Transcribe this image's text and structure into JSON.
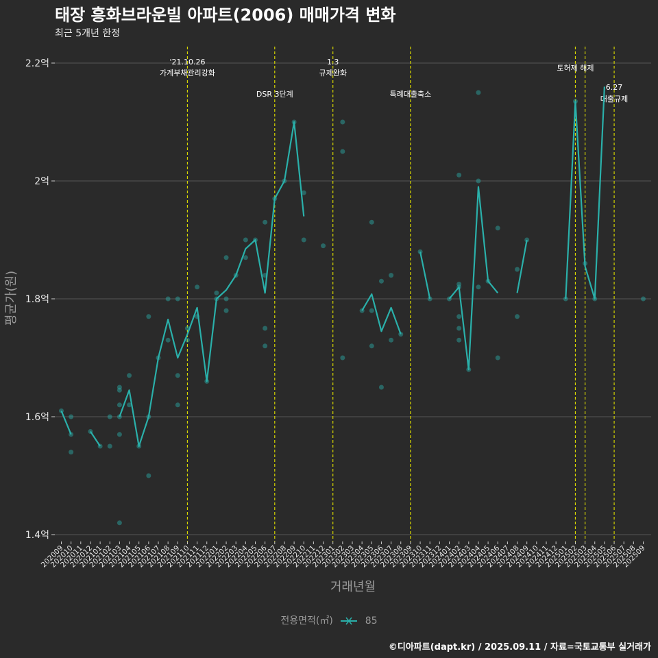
{
  "header": {
    "title": "태장 흥화브라운빌 아파트(2006) 매매가격 변화",
    "subtitle": "최근 5개년 한정"
  },
  "legend": {
    "title": "전용면적(㎡)",
    "item": "85"
  },
  "footer": {
    "credit": "©디아파트(dapt.kr) / 2025.09.11 / 자료=국토교통부 실거래가"
  },
  "colors": {
    "background": "#2a2a2a",
    "series": "#2ab0aa",
    "event_line": "#d8d800",
    "grid": "#555555"
  },
  "chart_data": {
    "type": "line",
    "title": "태장 흥화브라운빌 아파트(2006) 매매가격 변화",
    "xlabel": "거래년월",
    "ylabel": "평균가(원)",
    "ylim": [
      1.38,
      2.22
    ],
    "y_ticks": [
      {
        "value": 1.4,
        "label": "1.4억"
      },
      {
        "value": 1.6,
        "label": "1.6억"
      },
      {
        "value": 1.8,
        "label": "1.8억"
      },
      {
        "value": 2.0,
        "label": "2억"
      },
      {
        "value": 2.2,
        "label": "2.2억"
      }
    ],
    "categories": [
      "202009",
      "202010",
      "202011",
      "202012",
      "202101",
      "202102",
      "202103",
      "202104",
      "202105",
      "202106",
      "202107",
      "202108",
      "202109",
      "202110",
      "202111",
      "202112",
      "202201",
      "202202",
      "202203",
      "202204",
      "202205",
      "202206",
      "202207",
      "202208",
      "202209",
      "202210",
      "202211",
      "202212",
      "202301",
      "202302",
      "202303",
      "202304",
      "202305",
      "202306",
      "202307",
      "202308",
      "202309",
      "202310",
      "202311",
      "202312",
      "202401",
      "202402",
      "202403",
      "202404",
      "202405",
      "202406",
      "202407",
      "202408",
      "202409",
      "202410",
      "202411",
      "202412",
      "202501",
      "202502",
      "202503",
      "202504",
      "202505",
      "202506",
      "202507",
      "202508",
      "202509"
    ],
    "series": [
      {
        "name": "85",
        "values": [
          1.61,
          1.57,
          null,
          1.575,
          1.55,
          null,
          1.6,
          1.645,
          1.55,
          1.6,
          1.7,
          1.765,
          1.7,
          1.74,
          1.785,
          1.66,
          1.8,
          1.815,
          1.84,
          1.885,
          1.9,
          1.81,
          1.97,
          2.0,
          2.1,
          1.94,
          null,
          null,
          null,
          null,
          null,
          1.78,
          1.808,
          1.745,
          1.785,
          1.74,
          null,
          1.88,
          1.8,
          null,
          1.8,
          1.82,
          1.68,
          1.99,
          1.83,
          1.81,
          null,
          1.81,
          1.9,
          null,
          null,
          null,
          1.8,
          2.135,
          1.855,
          1.8,
          2.16,
          null,
          null,
          null,
          null
        ]
      }
    ],
    "scatter_points": [
      {
        "x": "202009",
        "y": 1.61
      },
      {
        "x": "202010",
        "y": 1.6
      },
      {
        "x": "202010",
        "y": 1.57
      },
      {
        "x": "202010",
        "y": 1.54
      },
      {
        "x": "202012",
        "y": 1.575
      },
      {
        "x": "202101",
        "y": 1.55
      },
      {
        "x": "202102",
        "y": 1.6
      },
      {
        "x": "202102",
        "y": 1.55
      },
      {
        "x": "202103",
        "y": 1.65
      },
      {
        "x": "202103",
        "y": 1.645
      },
      {
        "x": "202103",
        "y": 1.62
      },
      {
        "x": "202103",
        "y": 1.6
      },
      {
        "x": "202103",
        "y": 1.57
      },
      {
        "x": "202103",
        "y": 1.42
      },
      {
        "x": "202104",
        "y": 1.67
      },
      {
        "x": "202104",
        "y": 1.62
      },
      {
        "x": "202105",
        "y": 1.55
      },
      {
        "x": "202106",
        "y": 1.77
      },
      {
        "x": "202106",
        "y": 1.6
      },
      {
        "x": "202106",
        "y": 1.5
      },
      {
        "x": "202107",
        "y": 1.7
      },
      {
        "x": "202108",
        "y": 1.8
      },
      {
        "x": "202108",
        "y": 1.73
      },
      {
        "x": "202109",
        "y": 1.8
      },
      {
        "x": "202109",
        "y": 1.67
      },
      {
        "x": "202109",
        "y": 1.62
      },
      {
        "x": "202110",
        "y": 1.75
      },
      {
        "x": "202110",
        "y": 1.73
      },
      {
        "x": "202111",
        "y": 1.82
      },
      {
        "x": "202111",
        "y": 1.77
      },
      {
        "x": "202112",
        "y": 1.66
      },
      {
        "x": "202201",
        "y": 1.81
      },
      {
        "x": "202201",
        "y": 1.8
      },
      {
        "x": "202202",
        "y": 1.87
      },
      {
        "x": "202202",
        "y": 1.8
      },
      {
        "x": "202202",
        "y": 1.78
      },
      {
        "x": "202203",
        "y": 1.84
      },
      {
        "x": "202204",
        "y": 1.9
      },
      {
        "x": "202204",
        "y": 1.87
      },
      {
        "x": "202205",
        "y": 1.9
      },
      {
        "x": "202206",
        "y": 1.93
      },
      {
        "x": "202206",
        "y": 1.84
      },
      {
        "x": "202206",
        "y": 1.75
      },
      {
        "x": "202206",
        "y": 1.72
      },
      {
        "x": "202207",
        "y": 1.97
      },
      {
        "x": "202208",
        "y": 2.0
      },
      {
        "x": "202209",
        "y": 2.1
      },
      {
        "x": "202210",
        "y": 1.98
      },
      {
        "x": "202210",
        "y": 1.9
      },
      {
        "x": "202212",
        "y": 1.89
      },
      {
        "x": "202302",
        "y": 2.1
      },
      {
        "x": "202302",
        "y": 2.05
      },
      {
        "x": "202302",
        "y": 1.7
      },
      {
        "x": "202304",
        "y": 1.78
      },
      {
        "x": "202305",
        "y": 1.93
      },
      {
        "x": "202305",
        "y": 1.78
      },
      {
        "x": "202305",
        "y": 1.72
      },
      {
        "x": "202306",
        "y": 1.83
      },
      {
        "x": "202306",
        "y": 1.65
      },
      {
        "x": "202307",
        "y": 1.84
      },
      {
        "x": "202307",
        "y": 1.73
      },
      {
        "x": "202308",
        "y": 1.74
      },
      {
        "x": "202310",
        "y": 1.88
      },
      {
        "x": "202311",
        "y": 1.8
      },
      {
        "x": "202401",
        "y": 1.8
      },
      {
        "x": "202402",
        "y": 2.01
      },
      {
        "x": "202402",
        "y": 1.825
      },
      {
        "x": "202402",
        "y": 1.82
      },
      {
        "x": "202402",
        "y": 1.77
      },
      {
        "x": "202402",
        "y": 1.75
      },
      {
        "x": "202402",
        "y": 1.73
      },
      {
        "x": "202403",
        "y": 1.68
      },
      {
        "x": "202404",
        "y": 2.15
      },
      {
        "x": "202404",
        "y": 2.0
      },
      {
        "x": "202404",
        "y": 1.82
      },
      {
        "x": "202405",
        "y": 1.83
      },
      {
        "x": "202406",
        "y": 1.92
      },
      {
        "x": "202406",
        "y": 1.7
      },
      {
        "x": "202408",
        "y": 1.85
      },
      {
        "x": "202408",
        "y": 1.77
      },
      {
        "x": "202409",
        "y": 1.9
      },
      {
        "x": "202501",
        "y": 1.8
      },
      {
        "x": "202502",
        "y": 2.135
      },
      {
        "x": "202503",
        "y": 1.86
      },
      {
        "x": "202504",
        "y": 1.8
      },
      {
        "x": "202509",
        "y": 1.8
      }
    ],
    "annotations": [
      {
        "x": "202110",
        "lines": [
          "'21.10.26",
          "가계부채관리강화"
        ],
        "row": 1
      },
      {
        "x": "202207",
        "lines": [
          "DSR 3단계"
        ],
        "row": 2
      },
      {
        "x": "202301",
        "lines": [
          "1.3",
          "규제완화"
        ],
        "row": 1
      },
      {
        "x": "202309",
        "lines": [
          "특례대출축소"
        ],
        "row": 2
      },
      {
        "x": "202502",
        "lines": [
          "토허제 해제"
        ],
        "row": 1
      },
      {
        "x": "202503",
        "lines": [],
        "row": 1
      },
      {
        "x": "202506",
        "lines": [
          "6.27",
          "대출규제"
        ],
        "row": 3
      }
    ]
  }
}
